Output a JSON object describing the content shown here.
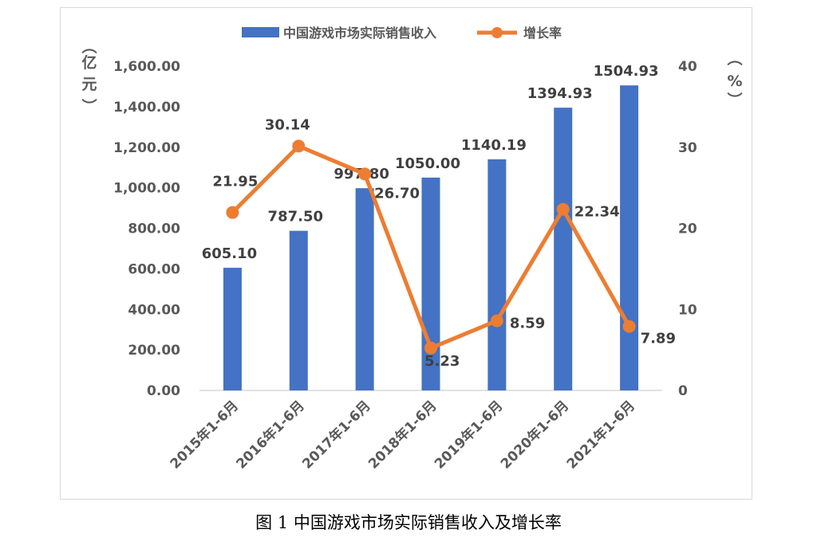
{
  "caption": "图 1  中国游戏市场实际销售收入及增长率",
  "chart_data": {
    "type": "bar",
    "categories": [
      "2015年1-6月",
      "2016年1-6月",
      "2017年1-6月",
      "2018年1-6月",
      "2019年1-6月",
      "2020年1-6月",
      "2021年1-6月"
    ],
    "series": [
      {
        "name": "中国游戏市场实际销售收入",
        "type": "bar",
        "axis": "left",
        "values": [
          605.1,
          787.5,
          997.8,
          1050.0,
          1140.19,
          1394.93,
          1504.93
        ],
        "labels": [
          "605.10",
          "787.50",
          "997.80",
          "1050.00",
          "1140.19",
          "1394.93",
          "1504.93"
        ],
        "color": "#4472c4"
      },
      {
        "name": "增长率",
        "type": "line",
        "axis": "right",
        "values": [
          21.95,
          30.14,
          26.7,
          5.23,
          8.59,
          22.34,
          7.89
        ],
        "labels": [
          "21.95",
          "30.14",
          "26.70",
          "5.23",
          "8.59",
          "22.34",
          "7.89"
        ],
        "color": "#ed7d31"
      }
    ],
    "y_left": {
      "unit_chars": [
        "（",
        "亿",
        "元",
        "）"
      ],
      "ylim": [
        0,
        1600
      ],
      "ticks": [
        "0.00",
        "200.00",
        "400.00",
        "600.00",
        "800.00",
        "1,000.00",
        "1,200.00",
        "1,400.00",
        "1,600.00"
      ],
      "tick_values": [
        0,
        200,
        400,
        600,
        800,
        1000,
        1200,
        1400,
        1600
      ]
    },
    "y_right": {
      "unit_chars": [
        "（",
        "%",
        "）"
      ],
      "ylim": [
        0,
        40
      ],
      "ticks": [
        "0",
        "10",
        "20",
        "30",
        "40"
      ],
      "tick_values": [
        0,
        10,
        20,
        30,
        40
      ]
    },
    "legend_position": "top",
    "grid": false
  }
}
